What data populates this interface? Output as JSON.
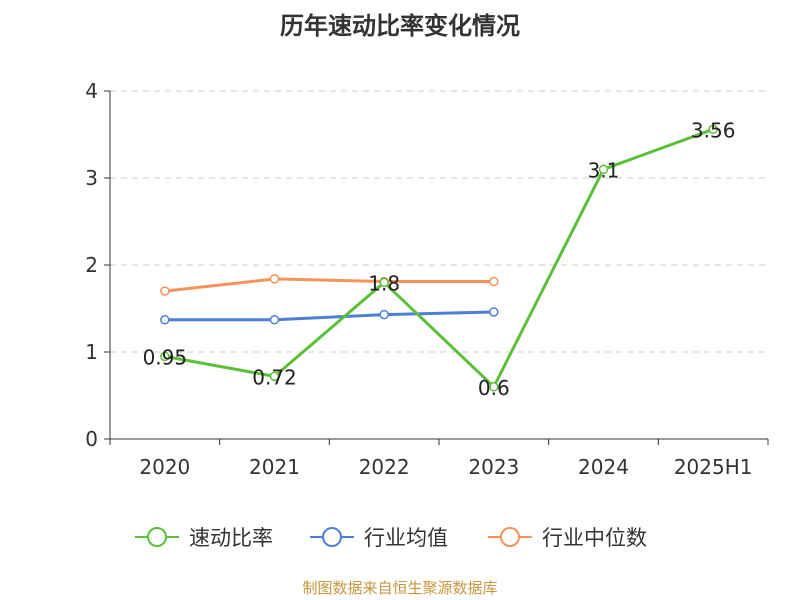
{
  "chart_data": {
    "type": "line",
    "title": "历年速动比率变化情况",
    "categories": [
      "2020",
      "2021",
      "2022",
      "2023",
      "2024",
      "2025H1"
    ],
    "ylim": [
      0,
      4
    ],
    "yticks": [
      0,
      1,
      2,
      3,
      4
    ],
    "grid": true,
    "legend_position": "bottom",
    "series": [
      {
        "name": "速动比率",
        "color": "#5cbf3a",
        "values": [
          0.95,
          0.72,
          1.8,
          0.6,
          3.1,
          3.56
        ],
        "labels": [
          "0.95",
          "0.72",
          "1.8",
          "0.6",
          "3.1",
          "3.56"
        ]
      },
      {
        "name": "行业均值",
        "color": "#4e7fd6",
        "values": [
          1.37,
          1.37,
          1.43,
          1.46,
          null,
          null
        ]
      },
      {
        "name": "行业中位数",
        "color": "#f5935a",
        "values": [
          1.7,
          1.84,
          1.81,
          1.81,
          null,
          null
        ]
      }
    ]
  },
  "footer": {
    "source": "制图数据来自恒生聚源数据库"
  }
}
